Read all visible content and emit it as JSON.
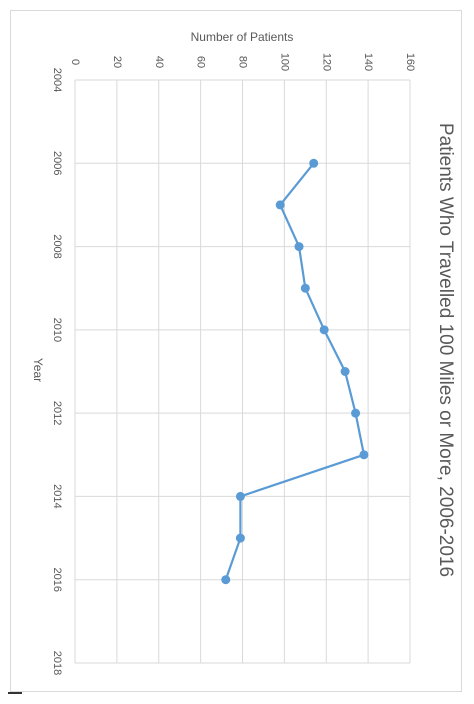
{
  "chart_data": {
    "type": "line",
    "title": "Patients Who Travelled 100 Miles or More, 2006-2016",
    "xlabel": "Year",
    "ylabel": "Number of Patients",
    "x": [
      2006,
      2007,
      2008,
      2009,
      2010,
      2011,
      2012,
      2013,
      2014,
      2015,
      2016
    ],
    "series": [
      {
        "values": [
          114,
          98,
          107,
          110,
          119,
          129,
          134,
          138,
          79,
          79,
          72
        ]
      }
    ],
    "xlim": [
      2004,
      2018
    ],
    "ylim": [
      0,
      160
    ],
    "x_ticks": [
      "2004",
      "2006",
      "2008",
      "2010",
      "2012",
      "2014",
      "2016",
      "2018"
    ],
    "y_ticks": [
      "0",
      "20",
      "40",
      "60",
      "80",
      "100",
      "120",
      "140",
      "160"
    ],
    "grid": true,
    "orientation": "rotated 90 degrees clockwise",
    "colors": {
      "series": "#5b9bd5",
      "grid": "#d9d9d9",
      "text": "#595959"
    }
  }
}
